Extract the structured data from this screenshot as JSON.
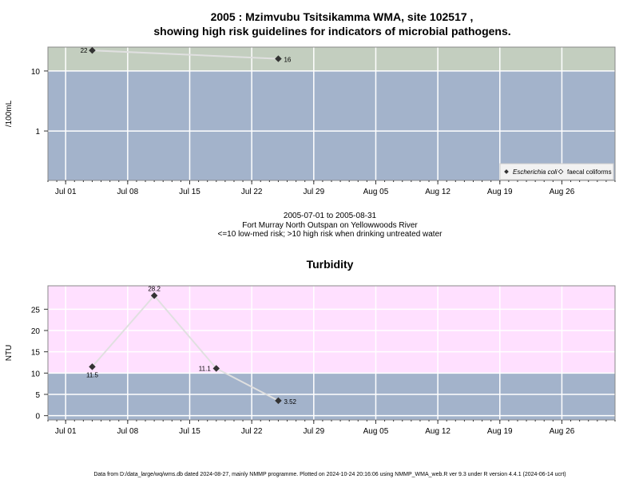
{
  "figure": {
    "title_line1": "2005 : Mzimvubu Tsitsikamma WMA, site 102517 ,",
    "title_line2": "showing high risk guidelines for indicators of microbial pathogens.",
    "period": "2005-07-01 to 2005-08-31",
    "site_desc": "Fort Murray North Outspan on Yellowwoods River",
    "risk_note": "<=10 low-med risk; >10 high risk when drinking untreated water",
    "footer": "Data from D:/data_large/wq/wms.db dated 2024-08-27, mainly NMMP programme. Plotted on 2024-10-24 20:16:06 using NMMP_WMA_web.R ver 9.3 under R version 4.4.1 (2024-06-14 ucrt)"
  },
  "colors": {
    "low_band": "#a3b3cb",
    "micro_high_band": "#c3cebf",
    "turb_high_band": "#ffe0ff",
    "line": "#e0e0e0",
    "point": "#333333",
    "grid": "#ffffff"
  },
  "chart_data": [
    {
      "type": "line",
      "title": "",
      "xlabel": "",
      "ylabel": "/100mL",
      "yscale": "log",
      "ylim": [
        0.15,
        25
      ],
      "y_ticks": [
        1,
        10
      ],
      "y_tick_labels": [
        "1",
        "10"
      ],
      "threshold": 10,
      "x_ticks": [
        "2005-07-01",
        "2005-07-08",
        "2005-07-15",
        "2005-07-22",
        "2005-07-29",
        "2005-08-05",
        "2005-08-12",
        "2005-08-19",
        "2005-08-26"
      ],
      "x_tick_labels": [
        "Jul 01",
        "Jul 08",
        "Jul 15",
        "Jul 22",
        "Jul 29",
        "Aug 05",
        "Aug 12",
        "Aug 19",
        "Aug 26"
      ],
      "xlim": [
        "2005-06-29",
        "2005-09-01"
      ],
      "series": [
        {
          "name": "Escherichia coli",
          "points": [
            {
              "x": "2005-07-04",
              "y": 22,
              "label": "22"
            },
            {
              "x": "2005-07-25",
              "y": 16,
              "label": "16"
            }
          ]
        },
        {
          "name": "faecal coliforms",
          "points": []
        }
      ],
      "legend_position": "bottom-right"
    },
    {
      "type": "line",
      "title": "Turbidity",
      "xlabel": "",
      "ylabel": "NTU",
      "yscale": "linear",
      "ylim": [
        -1,
        30.5
      ],
      "y_ticks": [
        0,
        5,
        10,
        15,
        20,
        25
      ],
      "y_tick_labels": [
        "0",
        "5",
        "10",
        "15",
        "20",
        "25"
      ],
      "threshold": 10,
      "x_ticks": [
        "2005-07-01",
        "2005-07-08",
        "2005-07-15",
        "2005-07-22",
        "2005-07-29",
        "2005-08-05",
        "2005-08-12",
        "2005-08-19",
        "2005-08-26"
      ],
      "x_tick_labels": [
        "Jul 01",
        "Jul 08",
        "Jul 15",
        "Jul 22",
        "Jul 29",
        "Aug 05",
        "Aug 12",
        "Aug 19",
        "Aug 26"
      ],
      "xlim": [
        "2005-06-29",
        "2005-09-01"
      ],
      "series": [
        {
          "name": "",
          "points": [
            {
              "x": "2005-07-04",
              "y": 11.5,
              "label": "11.5"
            },
            {
              "x": "2005-07-11",
              "y": 28.2,
              "label": "28.2"
            },
            {
              "x": "2005-07-18",
              "y": 11.1,
              "label": "11.1"
            },
            {
              "x": "2005-07-25",
              "y": 3.52,
              "label": "3.52"
            }
          ]
        }
      ]
    }
  ]
}
